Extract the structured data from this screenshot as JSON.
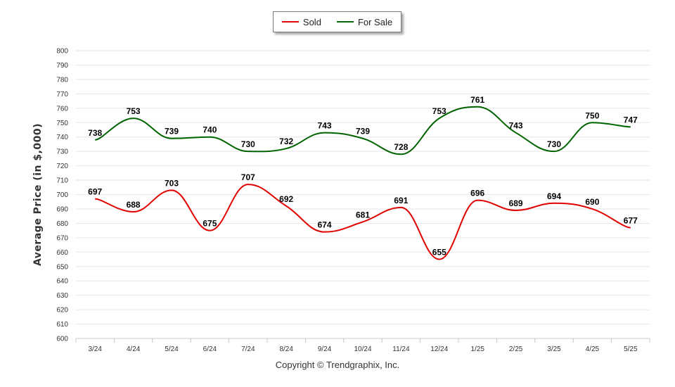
{
  "chart_data": {
    "type": "line",
    "categories": [
      "3/24",
      "4/24",
      "5/24",
      "6/24",
      "7/24",
      "8/24",
      "9/24",
      "10/24",
      "11/24",
      "12/24",
      "1/25",
      "2/25",
      "3/25",
      "4/25",
      "5/25"
    ],
    "series": [
      {
        "name": "Sold",
        "color": "#e00000",
        "values": [
          697,
          688,
          703,
          675,
          707,
          692,
          674,
          681,
          691,
          655,
          696,
          689,
          694,
          690,
          677
        ]
      },
      {
        "name": "For Sale",
        "color": "#006400",
        "values": [
          738,
          753,
          739,
          740,
          730,
          732,
          743,
          739,
          728,
          753,
          761,
          743,
          730,
          750,
          747
        ]
      }
    ],
    "ylabel": "Average Price  (in $,000)",
    "ylim": [
      600,
      800
    ],
    "yticks": [
      600,
      610,
      620,
      630,
      640,
      650,
      660,
      670,
      680,
      690,
      700,
      710,
      720,
      730,
      740,
      750,
      760,
      770,
      780,
      790,
      800
    ],
    "grid": true,
    "legend_position": "top-center"
  },
  "footer": {
    "copyright": "Copyright © Trendgraphix, Inc."
  }
}
